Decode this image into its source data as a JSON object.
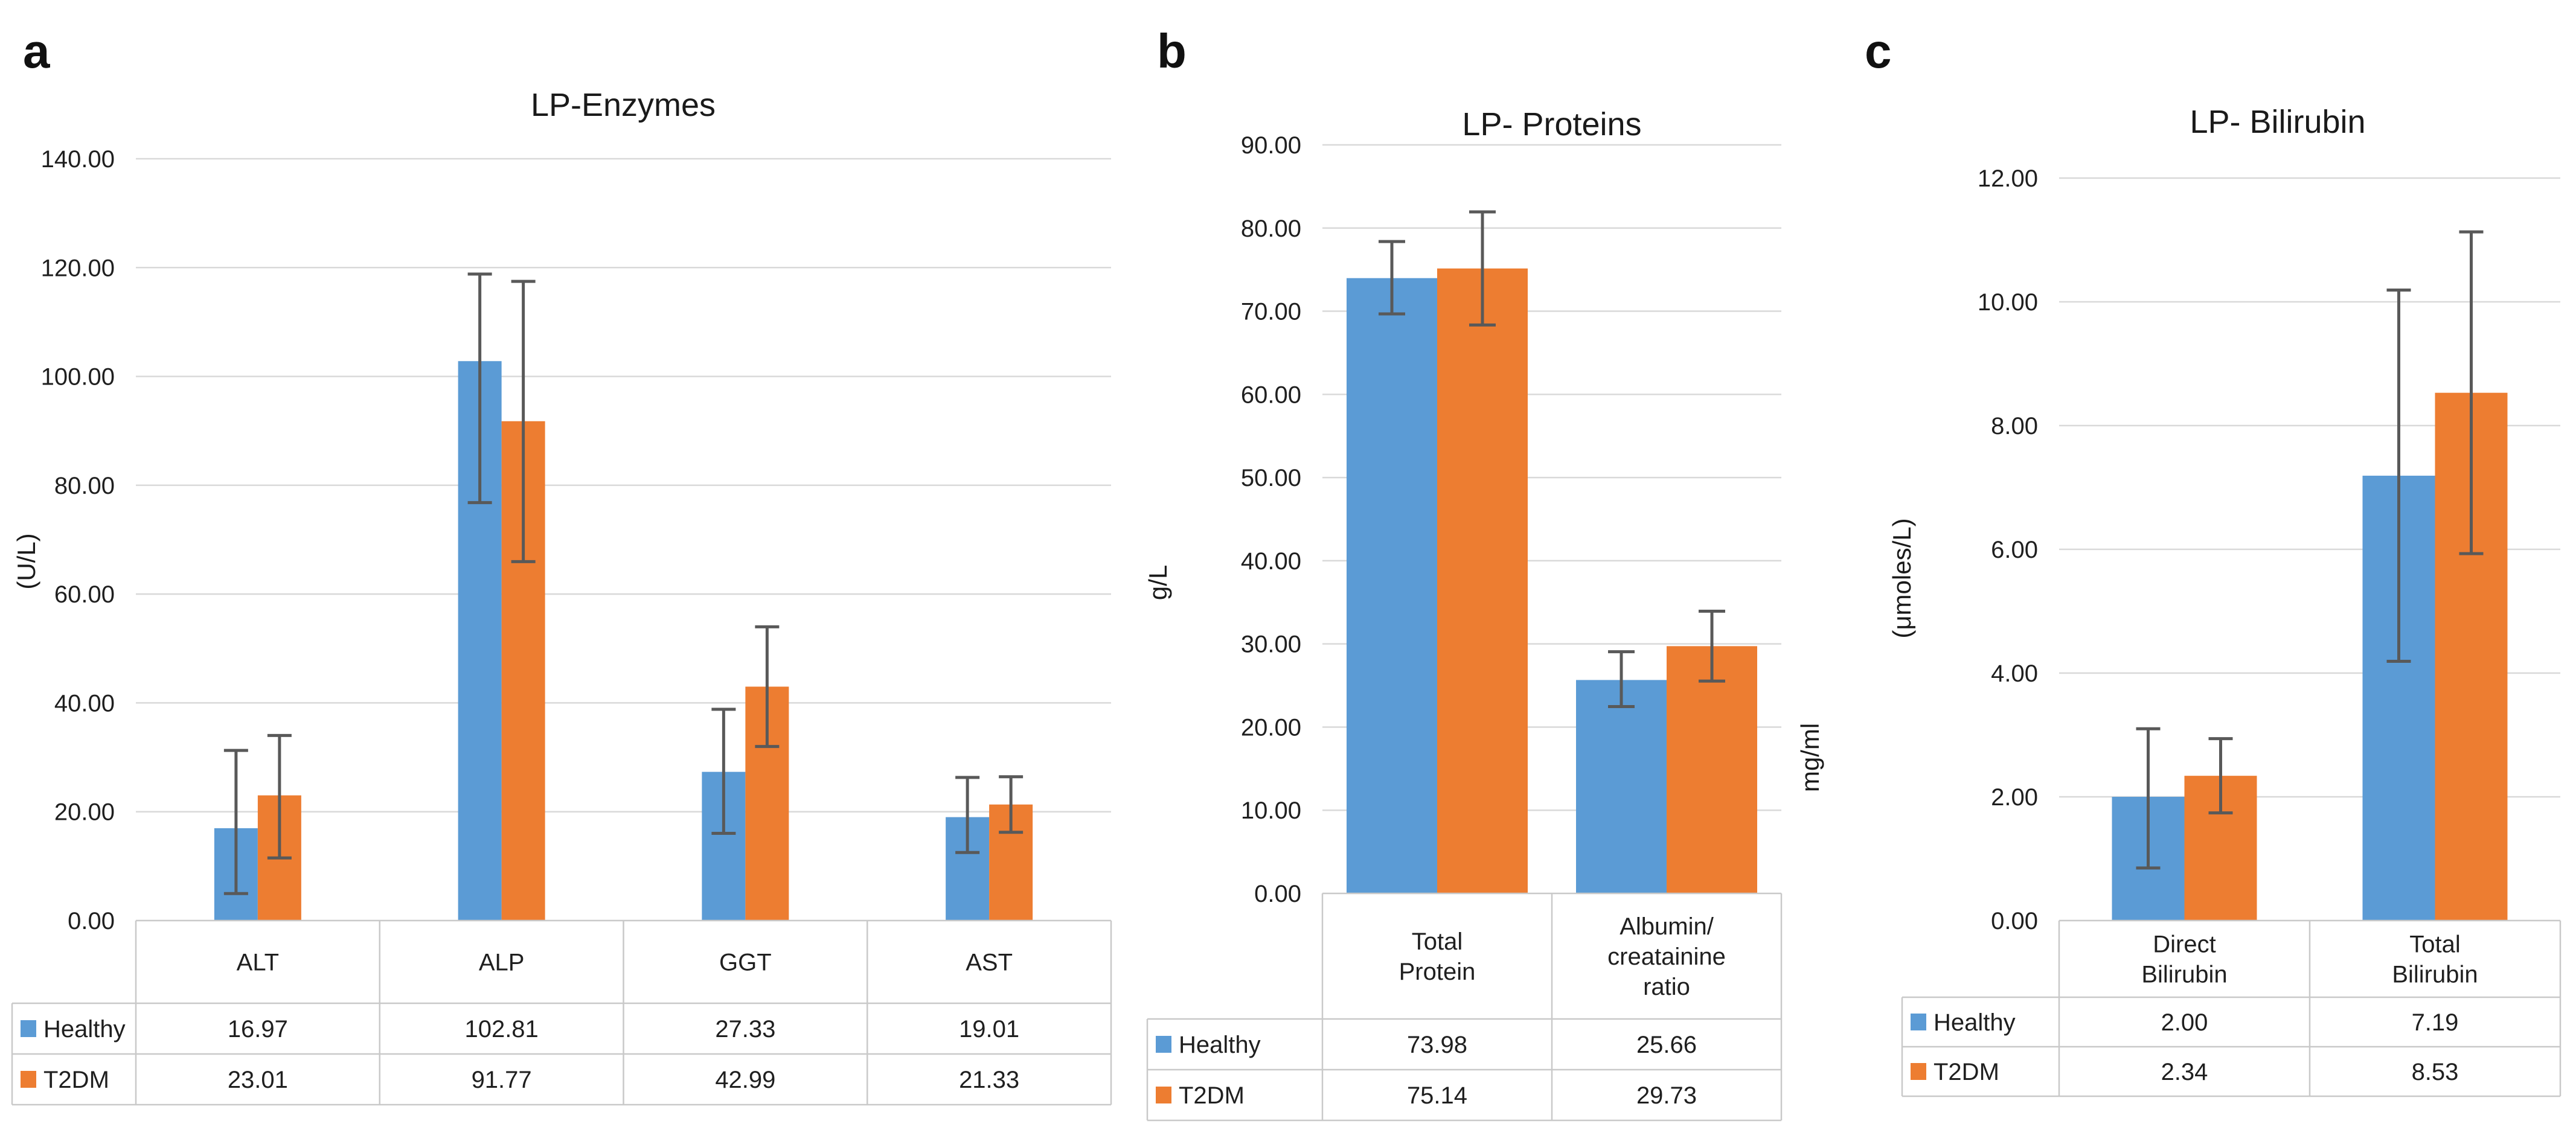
{
  "colors": {
    "healthy": "#5B9BD5",
    "t2dm": "#ED7D31",
    "error_bar": "#595959",
    "gridline": "#D9D9D9",
    "table_border": "#C9C9C9",
    "text": "#1a1a1a",
    "background": "#FFFFFF"
  },
  "legend": {
    "items": [
      {
        "label": "Healthy",
        "color": "#5B9BD5",
        "swatch": "legend-swatch-blue"
      },
      {
        "label": "T2DM",
        "color": "#ED7D31",
        "swatch": "legend-swatch-orange"
      }
    ]
  },
  "chart_data": [
    {
      "type": "bar",
      "panel_label": "a",
      "title": "LP-Enzymes",
      "ylabel": "(U/L)",
      "ylim": [
        0,
        140
      ],
      "ytick_step": 20,
      "grid": true,
      "legend_position": "table-left",
      "categories": [
        "ALT",
        "ALP",
        "GGT",
        "AST"
      ],
      "category_lines": [
        [
          "ALT"
        ],
        [
          "ALP"
        ],
        [
          "GGT"
        ],
        [
          "AST"
        ]
      ],
      "series": [
        {
          "name": "Healthy",
          "color": "#5B9BD5",
          "values": [
            16.97,
            102.81,
            27.33,
            19.01
          ],
          "err_plus": [
            14.3,
            16.0,
            11.5,
            7.3
          ],
          "err_minus": [
            12.0,
            26.0,
            11.3,
            6.5
          ]
        },
        {
          "name": "T2DM",
          "color": "#ED7D31",
          "values": [
            23.01,
            91.77,
            42.99,
            21.33
          ],
          "err_plus": [
            11.0,
            25.7,
            11.0,
            5.1
          ],
          "err_minus": [
            11.5,
            25.8,
            11.0,
            5.1
          ]
        }
      ]
    },
    {
      "type": "bar",
      "panel_label": "b",
      "title": "LP- Proteins",
      "ylabel": "g/L",
      "ylabel_right": "mg/ml",
      "ylim": [
        0,
        90
      ],
      "ytick_step": 10,
      "grid": true,
      "legend_position": "table-left",
      "categories": [
        "Total Protein",
        "Albumin/ creatainine ratio"
      ],
      "category_lines": [
        [
          "Total",
          "Protein"
        ],
        [
          "Albumin/",
          "creatainine",
          "ratio"
        ]
      ],
      "series": [
        {
          "name": "Healthy",
          "color": "#5B9BD5",
          "values": [
            73.98,
            25.66
          ],
          "err_plus": [
            4.4,
            3.4
          ],
          "err_minus": [
            4.3,
            3.2
          ]
        },
        {
          "name": "T2DM",
          "color": "#ED7D31",
          "values": [
            75.14,
            29.73
          ],
          "err_plus": [
            6.8,
            4.2
          ],
          "err_minus": [
            6.8,
            4.2
          ]
        }
      ]
    },
    {
      "type": "bar",
      "panel_label": "c",
      "title": "LP- Bilirubin",
      "ylabel": "(μmoles/L)",
      "ylim": [
        0,
        12
      ],
      "ytick_step": 2,
      "grid": true,
      "legend_position": "table-left",
      "categories": [
        "Direct Bilirubin",
        "Total Bilirubin"
      ],
      "category_lines": [
        [
          "Direct",
          "Bilirubin"
        ],
        [
          "Total",
          "Bilirubin"
        ]
      ],
      "series": [
        {
          "name": "Healthy",
          "color": "#5B9BD5",
          "values": [
            2.0,
            7.19
          ],
          "err_plus": [
            1.1,
            3.0
          ],
          "err_minus": [
            1.15,
            3.0
          ]
        },
        {
          "name": "T2DM",
          "color": "#ED7D31",
          "values": [
            2.34,
            8.53
          ],
          "err_plus": [
            0.6,
            2.6
          ],
          "err_minus": [
            0.6,
            2.6
          ]
        }
      ]
    }
  ]
}
